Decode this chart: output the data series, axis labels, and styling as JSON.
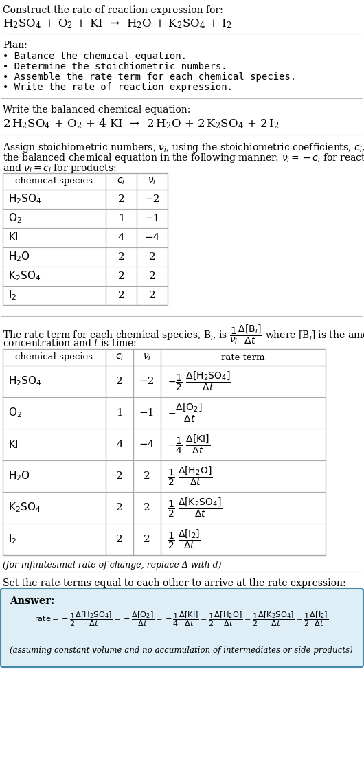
{
  "title_line1": "Construct the rate of reaction expression for:",
  "plan_header": "Plan:",
  "plan_items": [
    "• Balance the chemical equation.",
    "• Determine the stoichiometric numbers.",
    "• Assemble the rate term for each chemical species.",
    "• Write the rate of reaction expression."
  ],
  "balanced_header": "Write the balanced chemical equation:",
  "stoich_line1": "Assign stoichiometric numbers, ν_i, using the stoichiometric coefficients, c_i, from",
  "stoich_line2": "the balanced chemical equation in the following manner: ν_i = −c_i for reactants",
  "stoich_line3": "and ν_i = c_i for products:",
  "rate_intro_line1": "The rate term for each chemical species, B_i, is  1/ν_i * Δ[B_i]/Δt  where [B_i] is the amount",
  "rate_intro_line2": "concentration and t is time:",
  "infinitesimal_note": "(for infinitesimal rate of change, replace Δ with d)",
  "set_rate_text": "Set the rate terms equal to each other to arrive at the rate expression:",
  "answer_label": "Answer:",
  "assuming_note": "(assuming constant volume and no accumulation of intermediates or side products)",
  "bg_color": "#ffffff",
  "text_color": "#000000",
  "table_border_color": "#aaaaaa",
  "answer_bg_color": "#deeef6",
  "answer_border_color": "#4488aa",
  "species_list": [
    "H_2SO_4",
    "O_2",
    "KI",
    "H_2O",
    "K_2SO_4",
    "I_2"
  ],
  "ci_list": [
    "2",
    "1",
    "4",
    "2",
    "2",
    "2"
  ],
  "nu_list": [
    "-2",
    "-1",
    "-4",
    "2",
    "2",
    "2"
  ]
}
